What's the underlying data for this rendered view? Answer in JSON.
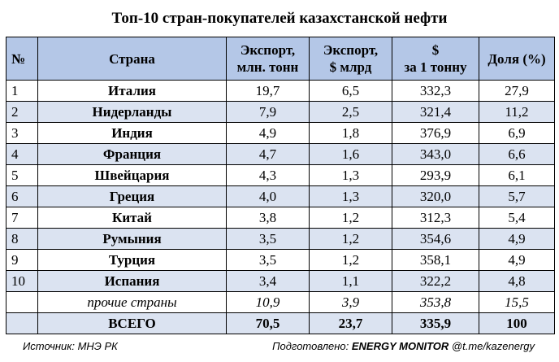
{
  "title": "Топ-10 стран-покупателей казахстанской нефти",
  "headers": {
    "num": "№",
    "country": "Страна",
    "export_tonnes_1": "Экспорт,",
    "export_tonnes_2": "млн. тонн",
    "export_usd_1": "Экспорт,",
    "export_usd_2": "$ млрд",
    "price_1": "$",
    "price_2": "за 1 тонну",
    "share": "Доля (%)"
  },
  "rows": [
    {
      "num": "1",
      "country": "Италия",
      "tonnes": "19,7",
      "usd": "6,5",
      "price": "332,3",
      "share": "27,9"
    },
    {
      "num": "2",
      "country": "Нидерланды",
      "tonnes": "7,9",
      "usd": "2,5",
      "price": "321,4",
      "share": "11,2"
    },
    {
      "num": "3",
      "country": "Индия",
      "tonnes": "4,9",
      "usd": "1,8",
      "price": "376,9",
      "share": "6,9"
    },
    {
      "num": "4",
      "country": "Франция",
      "tonnes": "4,7",
      "usd": "1,6",
      "price": "343,0",
      "share": "6,6"
    },
    {
      "num": "5",
      "country": "Швейцария",
      "tonnes": "4,3",
      "usd": "1,3",
      "price": "293,9",
      "share": "6,1"
    },
    {
      "num": "6",
      "country": "Греция",
      "tonnes": "4,0",
      "usd": "1,3",
      "price": "320,0",
      "share": "5,7"
    },
    {
      "num": "7",
      "country": "Китай",
      "tonnes": "3,8",
      "usd": "1,2",
      "price": "312,3",
      "share": "5,4"
    },
    {
      "num": "8",
      "country": "Румыния",
      "tonnes": "3,5",
      "usd": "1,2",
      "price": "354,6",
      "share": "4,9"
    },
    {
      "num": "9",
      "country": "Турция",
      "tonnes": "3,5",
      "usd": "1,2",
      "price": "358,1",
      "share": "4,9"
    },
    {
      "num": "10",
      "country": "Испания",
      "tonnes": "3,4",
      "usd": "1,1",
      "price": "322,2",
      "share": "4,8"
    }
  ],
  "other": {
    "country": "прочие страны",
    "tonnes": "10,9",
    "usd": "3,9",
    "price": "353,8",
    "share": "15,5"
  },
  "total": {
    "country": "ВСЕГО",
    "tonnes": "70,5",
    "usd": "23,7",
    "price": "335,9",
    "share": "100"
  },
  "footer": {
    "source": "Источник: МНЭ РК",
    "prepared_prefix": "Подготовлено: ",
    "prepared_brand": "ENERGY MONITOR",
    "prepared_suffix": " @t.me/kazenergy"
  },
  "colors": {
    "header_bg": "#b4c7e7",
    "shaded_row": "#dbe3f1"
  }
}
